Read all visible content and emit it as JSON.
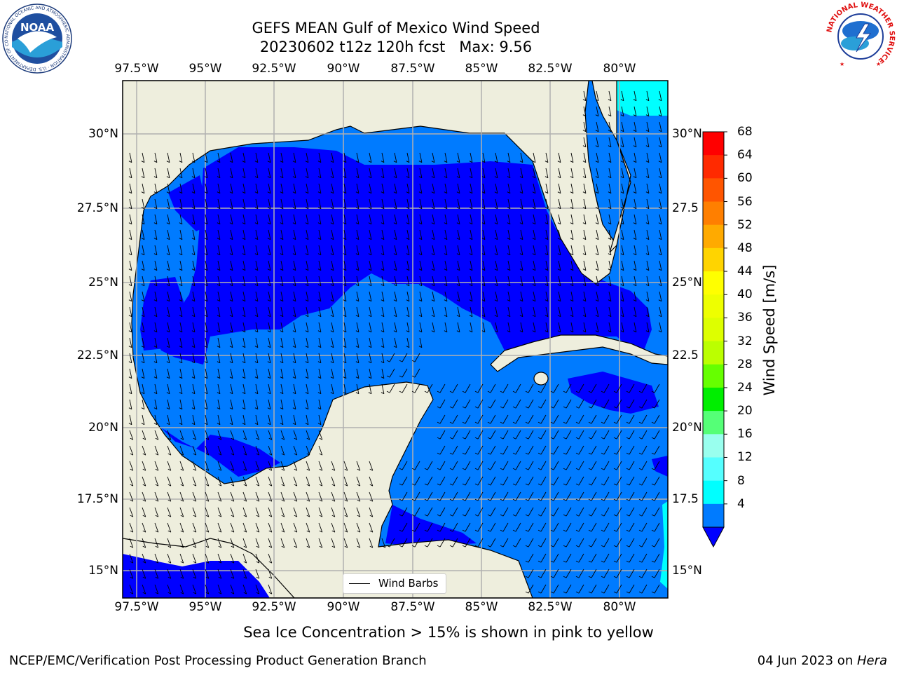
{
  "title": {
    "line1": "GEFS MEAN Gulf of Mexico Wind Speed",
    "line2": "20230602 t12z 120h fcst   Max: 9.56"
  },
  "map": {
    "lon_ticks": [
      "97.5°W",
      "95°W",
      "92.5°W",
      "90°W",
      "87.5°W",
      "85°W",
      "82.5°W",
      "80°W"
    ],
    "lat_ticks_left": [
      "30°N",
      "27.5°N",
      "25°N",
      "22.5°N",
      "20°N",
      "17.5°N",
      "15°N"
    ],
    "lat_ticks_right": [
      "30°N",
      "27.5",
      "25°N",
      "22.5",
      "20°N",
      "17.5",
      "15°N"
    ],
    "legend_label": "Wind Barbs",
    "colors": {
      "land": "#eeeedd",
      "band_4_8": "#0000ff",
      "band_8_12": "#007bff",
      "band_12_16": "#00ffff",
      "grid": "#b0b0b0"
    }
  },
  "colorbar": {
    "title": "Wind Speed [m/s]",
    "labels": [
      "68",
      "64",
      "60",
      "56",
      "52",
      "48",
      "44",
      "40",
      "36",
      "32",
      "28",
      "24",
      "20",
      "16",
      "12",
      "8",
      "4"
    ],
    "colors": [
      "#ff0000",
      "#ff2a00",
      "#ff5500",
      "#ff7f00",
      "#ffaa00",
      "#ffd400",
      "#ffff00",
      "#eeff00",
      "#ddff00",
      "#bbff00",
      "#66ff00",
      "#00ee00",
      "#55ff77",
      "#99ffee",
      "#55ffff",
      "#00ffff",
      "#007bff",
      "#0000ff"
    ]
  },
  "subtitle": "Sea Ice Concentration > 15% is shown in pink to yellow",
  "footer": {
    "left": "NCEP/EMC/Verification Post Processing Product Generation Branch",
    "right_date": "04 Jun 2023 on ",
    "right_machine": "Hera"
  },
  "logos": {
    "noaa_text": "NOAA",
    "noaa_ring": "NATIONAL OCEANIC AND ATMOSPHERIC ADMINISTRATION · U.S. DEPARTMENT OF COMMERCE",
    "nws_ring": "NATIONAL WEATHER SERVICE"
  }
}
